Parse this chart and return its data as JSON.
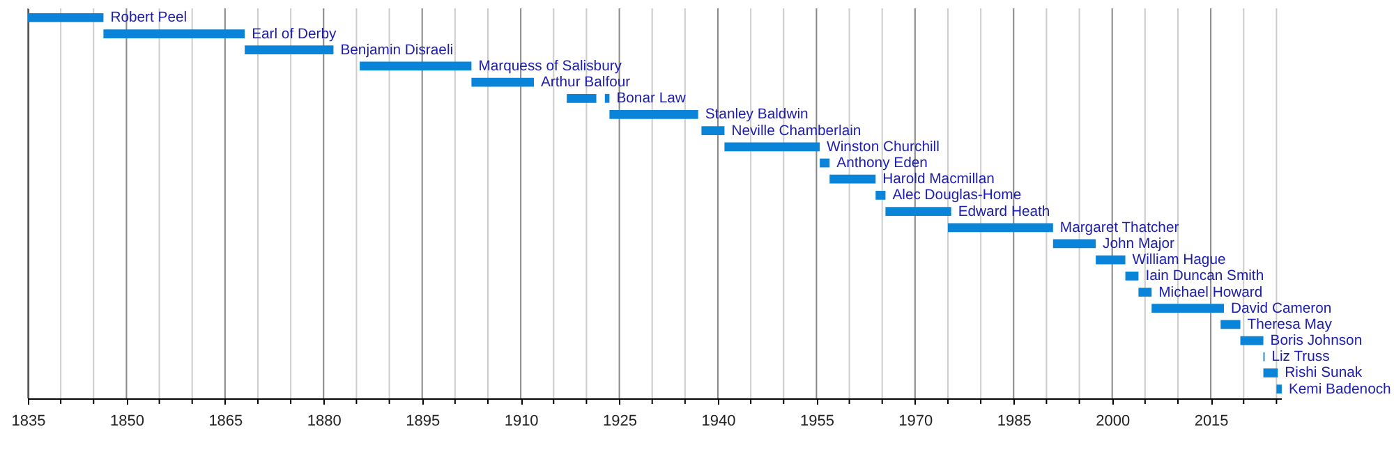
{
  "chart_data": {
    "type": "bar",
    "orientation": "horizontal",
    "categories": [
      "Robert Peel",
      "Earl of Derby",
      "Benjamin Disraeli",
      "Marquess of Salisbury",
      "Arthur Balfour",
      "Bonar Law",
      "Stanley Baldwin",
      "Neville Chamberlain",
      "Winston Churchill",
      "Anthony Eden",
      "Harold Macmillan",
      "Alec Douglas-Home",
      "Edward Heath",
      "Margaret Thatcher",
      "John Major",
      "William Hague",
      "Iain Duncan Smith",
      "Michael Howard",
      "David Cameron",
      "Theresa May",
      "Boris Johnson",
      "Liz Truss",
      "Rishi Sunak",
      "Kemi Badenoch"
    ],
    "series": [
      {
        "color": "#0a84d8",
        "base": [
          1835,
          1846.5,
          1868,
          1885.5,
          1902.5,
          1917,
          1923.5,
          1937.5,
          1941,
          1955.5,
          1957,
          1964,
          1965.5,
          1975,
          1991,
          1997.5,
          2002,
          2004,
          2006,
          2016.5,
          2019.5,
          2023,
          2023,
          2025
        ],
        "values": [
          11.5,
          21.5,
          13.5,
          17,
          9.5,
          4.5,
          13.5,
          3.5,
          14.5,
          1.5,
          7,
          1.5,
          10,
          16,
          6.5,
          4.5,
          2,
          2,
          11,
          3,
          3.5,
          0.2,
          2.2,
          0.8
        ]
      },
      {
        "color": "#0a84d8",
        "base": [
          null,
          null,
          null,
          null,
          null,
          1922.8,
          null,
          null,
          null,
          null,
          null,
          null,
          null,
          null,
          null,
          null,
          null,
          null,
          null,
          null,
          null,
          null,
          null,
          null
        ],
        "values": [
          null,
          null,
          null,
          null,
          null,
          0.7,
          null,
          null,
          null,
          null,
          null,
          null,
          null,
          null,
          null,
          null,
          null,
          null,
          null,
          null,
          null,
          null,
          null,
          null
        ]
      }
    ],
    "data_labels": false,
    "grid": true,
    "xlim": [
      1835,
      2025.7
    ],
    "xticks": [
      1835,
      {
        "value": 1840,
        "label": null
      },
      {
        "value": 1845,
        "label": null
      },
      1850,
      {
        "value": 1855,
        "label": null
      },
      {
        "value": 1860,
        "label": null
      },
      1865,
      {
        "value": 1870,
        "label": null
      },
      {
        "value": 1875,
        "label": null
      },
      1880,
      {
        "value": 1885,
        "label": null
      },
      {
        "value": 1890,
        "label": null
      },
      1895,
      {
        "value": 1900,
        "label": null
      },
      {
        "value": 1905,
        "label": null
      },
      1910,
      {
        "value": 1915,
        "label": null
      },
      {
        "value": 1920,
        "label": null
      },
      1925,
      {
        "value": 1930,
        "label": null
      },
      {
        "value": 1935,
        "label": null
      },
      1940,
      {
        "value": 1945,
        "label": null
      },
      {
        "value": 1950,
        "label": null
      },
      1955,
      {
        "value": 1960,
        "label": null
      },
      {
        "value": 1965,
        "label": null
      },
      1970,
      {
        "value": 1975,
        "label": null
      },
      {
        "value": 1980,
        "label": null
      },
      1985,
      {
        "value": 1990,
        "label": null
      },
      {
        "value": 1995,
        "label": null
      },
      2000,
      {
        "value": 2005,
        "label": null
      },
      {
        "value": 2010,
        "label": null
      },
      2015,
      {
        "value": 2020,
        "label": null
      },
      {
        "value": 2025,
        "label": null
      }
    ]
  }
}
